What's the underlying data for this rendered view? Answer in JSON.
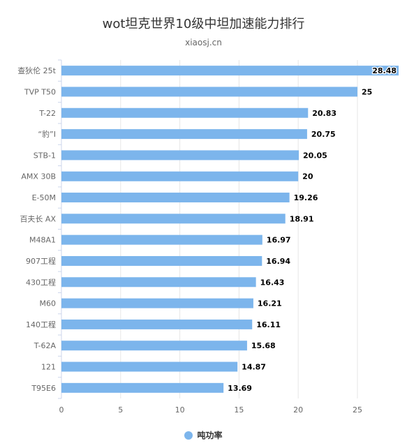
{
  "title": "wot坦克世界10级中坦加速能力排行",
  "subtitle": "xiaosj.cn",
  "colors": {
    "bar": "#7cb5ec",
    "axis_text": "#666666",
    "value_text": "#000000",
    "grid": "#e6e6e6"
  },
  "chart_data": {
    "type": "bar",
    "orientation": "horizontal",
    "categories": [
      "查狄伦 25t",
      "TVP T50",
      "T-22",
      "“豹”I",
      "STB-1",
      "AMX 30B",
      "E-50M",
      "百夫长 AX",
      "M48A1",
      "907工程",
      "430工程",
      "M60",
      "140工程",
      "T-62A",
      "121",
      "T95E6"
    ],
    "series": [
      {
        "name": "吨功率",
        "values": [
          28.48,
          25,
          20.83,
          20.75,
          20.05,
          20,
          19.26,
          18.91,
          16.97,
          16.94,
          16.43,
          16.21,
          16.11,
          15.68,
          14.87,
          13.69
        ]
      }
    ],
    "xlim": [
      0,
      28.48
    ],
    "xticks": [
      0,
      5,
      10,
      15,
      20,
      25
    ],
    "xlabel": "",
    "ylabel": "",
    "grid": true,
    "legend_position": "bottom"
  }
}
